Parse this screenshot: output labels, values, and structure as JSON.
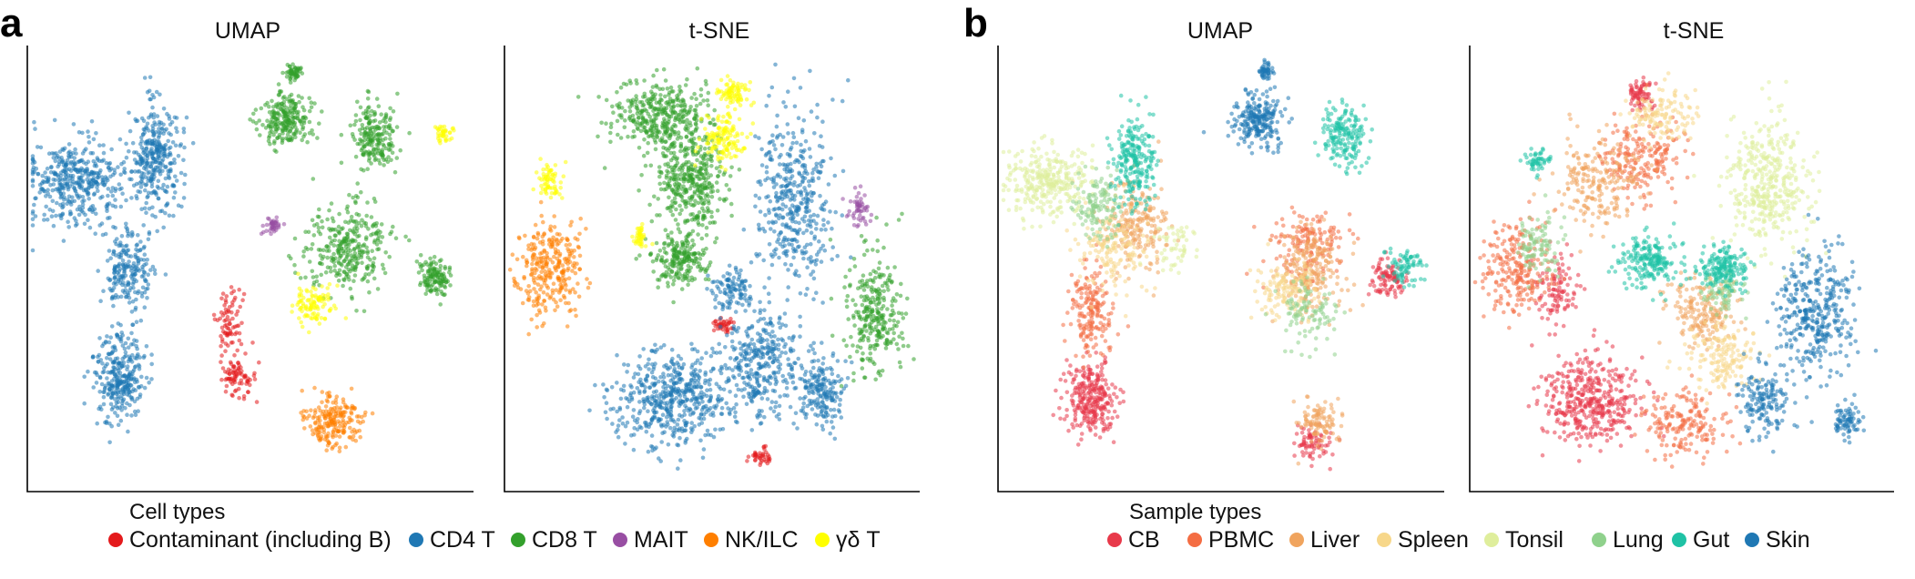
{
  "panels": [
    {
      "letter": "a"
    },
    {
      "letter": "b"
    }
  ],
  "chart_data": [
    {
      "type": "scatter",
      "panel": "a",
      "title": "UMAP",
      "xlabel": "",
      "ylabel": "",
      "grid": false,
      "legend_title": "Cell types",
      "legend_placement": "bottom",
      "series": [
        {
          "name": "Contaminant (including B)",
          "color": "#e41a1c",
          "clusters": [
            [
              0.45,
              0.62,
              0.03,
              0.08,
              0.3
            ],
            [
              0.47,
              0.75,
              0.04,
              0.05,
              0.3
            ]
          ]
        },
        {
          "name": "CD4 T",
          "color": "#1f78b4",
          "clusters": [
            [
              0.1,
              0.3,
              0.1,
              0.1,
              1.6
            ],
            [
              0.28,
              0.25,
              0.06,
              0.13,
              1.3
            ],
            [
              0.22,
              0.5,
              0.05,
              0.1,
              0.8
            ],
            [
              0.2,
              0.75,
              0.06,
              0.1,
              1.2
            ]
          ]
        },
        {
          "name": "CD8 T",
          "color": "#33a02c",
          "clusters": [
            [
              0.58,
              0.16,
              0.06,
              0.06,
              0.9
            ],
            [
              0.78,
              0.2,
              0.05,
              0.08,
              0.8
            ],
            [
              0.72,
              0.45,
              0.1,
              0.1,
              1.2
            ],
            [
              0.92,
              0.52,
              0.04,
              0.04,
              0.5
            ],
            [
              0.6,
              0.05,
              0.015,
              0.02,
              0.2
            ]
          ]
        },
        {
          "name": "MAIT",
          "color": "#984ea3",
          "clusters": [
            [
              0.55,
              0.4,
              0.02,
              0.02,
              0.15
            ]
          ]
        },
        {
          "name": "NK/ILC",
          "color": "#ff7f00",
          "clusters": [
            [
              0.69,
              0.85,
              0.06,
              0.06,
              0.8
            ]
          ]
        },
        {
          "name": "γδ T",
          "color": "#ffff00",
          "clusters": [
            [
              0.64,
              0.58,
              0.05,
              0.05,
              0.4
            ],
            [
              0.94,
              0.19,
              0.02,
              0.02,
              0.15
            ]
          ]
        }
      ]
    },
    {
      "type": "scatter",
      "panel": "a",
      "title": "t-SNE",
      "xlabel": "",
      "ylabel": "",
      "grid": false,
      "series": [
        {
          "name": "Contaminant (including B)",
          "color": "#e41a1c",
          "clusters": [
            [
              0.52,
              0.63,
              0.04,
              0.02,
              0.15
            ],
            [
              0.62,
              0.93,
              0.03,
              0.02,
              0.15
            ]
          ]
        },
        {
          "name": "CD4 T",
          "color": "#1f78b4",
          "clusters": [
            [
              0.7,
              0.35,
              0.1,
              0.2,
              1.6
            ],
            [
              0.4,
              0.8,
              0.15,
              0.11,
              2.0
            ],
            [
              0.62,
              0.72,
              0.1,
              0.12,
              1.3
            ],
            [
              0.77,
              0.78,
              0.06,
              0.08,
              0.7
            ],
            [
              0.55,
              0.55,
              0.05,
              0.05,
              0.4
            ]
          ]
        },
        {
          "name": "CD8 T",
          "color": "#33a02c",
          "clusters": [
            [
              0.37,
              0.15,
              0.12,
              0.08,
              1.4
            ],
            [
              0.45,
              0.3,
              0.08,
              0.12,
              1.5
            ],
            [
              0.42,
              0.48,
              0.07,
              0.06,
              0.8
            ],
            [
              0.9,
              0.6,
              0.07,
              0.15,
              1.1
            ]
          ]
        },
        {
          "name": "MAIT",
          "color": "#984ea3",
          "clusters": [
            [
              0.86,
              0.36,
              0.03,
              0.04,
              0.2
            ]
          ]
        },
        {
          "name": "NK/ILC",
          "color": "#ff7f00",
          "clusters": [
            [
              0.1,
              0.5,
              0.08,
              0.11,
              1.1
            ]
          ]
        },
        {
          "name": "γδ T",
          "color": "#ffff00",
          "clusters": [
            [
              0.1,
              0.3,
              0.03,
              0.04,
              0.25
            ],
            [
              0.53,
              0.2,
              0.06,
              0.06,
              0.5
            ],
            [
              0.55,
              0.1,
              0.04,
              0.03,
              0.3
            ],
            [
              0.32,
              0.43,
              0.02,
              0.03,
              0.15
            ]
          ]
        }
      ]
    },
    {
      "type": "scatter",
      "panel": "b",
      "title": "UMAP",
      "xlabel": "",
      "ylabel": "",
      "grid": false,
      "legend_title": "Sample types",
      "legend_placement": "bottom",
      "series": [
        {
          "name": "CB",
          "color": "#e8394a",
          "clusters": [
            [
              0.2,
              0.8,
              0.06,
              0.08,
              1.1
            ],
            [
              0.88,
              0.52,
              0.04,
              0.04,
              0.4
            ],
            [
              0.71,
              0.9,
              0.04,
              0.04,
              0.3
            ]
          ]
        },
        {
          "name": "PBMC",
          "color": "#f46d43",
          "clusters": [
            [
              0.2,
              0.6,
              0.05,
              0.1,
              0.7
            ],
            [
              0.7,
              0.45,
              0.08,
              0.08,
              0.6
            ]
          ]
        },
        {
          "name": "Liver",
          "color": "#f0a45e",
          "clusters": [
            [
              0.3,
              0.4,
              0.07,
              0.1,
              0.8
            ],
            [
              0.7,
              0.5,
              0.08,
              0.1,
              0.8
            ],
            [
              0.72,
              0.85,
              0.05,
              0.05,
              0.4
            ]
          ]
        },
        {
          "name": "Spleen",
          "color": "#f7d78a",
          "clusters": [
            [
              0.25,
              0.45,
              0.08,
              0.1,
              0.6
            ],
            [
              0.65,
              0.55,
              0.07,
              0.07,
              0.5
            ]
          ]
        },
        {
          "name": "Tonsil",
          "color": "#dfee9c",
          "clusters": [
            [
              0.1,
              0.3,
              0.09,
              0.08,
              1.2
            ],
            [
              0.4,
              0.45,
              0.05,
              0.05,
              0.2
            ]
          ]
        },
        {
          "name": "Lung",
          "color": "#8fd18c",
          "clusters": [
            [
              0.22,
              0.35,
              0.06,
              0.08,
              0.5
            ],
            [
              0.7,
              0.6,
              0.07,
              0.07,
              0.4
            ]
          ]
        },
        {
          "name": "Gut",
          "color": "#1fc2a5",
          "clusters": [
            [
              0.3,
              0.25,
              0.05,
              0.1,
              0.9
            ],
            [
              0.78,
              0.2,
              0.05,
              0.07,
              0.7
            ],
            [
              0.92,
              0.5,
              0.04,
              0.04,
              0.3
            ]
          ]
        },
        {
          "name": "Skin",
          "color": "#1f78b4",
          "clusters": [
            [
              0.58,
              0.16,
              0.06,
              0.06,
              0.9
            ],
            [
              0.6,
              0.05,
              0.015,
              0.02,
              0.2
            ]
          ]
        }
      ]
    },
    {
      "type": "scatter",
      "panel": "b",
      "title": "t-SNE",
      "xlabel": "",
      "ylabel": "",
      "grid": false,
      "series": [
        {
          "name": "CB",
          "color": "#e8394a",
          "clusters": [
            [
              0.28,
              0.8,
              0.12,
              0.1,
              1.6
            ],
            [
              0.4,
              0.1,
              0.03,
              0.04,
              0.3
            ],
            [
              0.2,
              0.55,
              0.05,
              0.08,
              0.4
            ]
          ]
        },
        {
          "name": "PBMC",
          "color": "#f46d43",
          "clusters": [
            [
              0.1,
              0.5,
              0.08,
              0.11,
              0.9
            ],
            [
              0.4,
              0.25,
              0.1,
              0.1,
              0.8
            ],
            [
              0.5,
              0.85,
              0.1,
              0.08,
              0.7
            ]
          ]
        },
        {
          "name": "Liver",
          "color": "#f0a45e",
          "clusters": [
            [
              0.3,
              0.3,
              0.1,
              0.1,
              0.8
            ],
            [
              0.55,
              0.6,
              0.08,
              0.08,
              0.7
            ]
          ]
        },
        {
          "name": "Spleen",
          "color": "#f7d78a",
          "clusters": [
            [
              0.45,
              0.15,
              0.08,
              0.06,
              0.5
            ],
            [
              0.6,
              0.7,
              0.08,
              0.08,
              0.6
            ]
          ]
        },
        {
          "name": "Tonsil",
          "color": "#dfee9c",
          "clusters": [
            [
              0.7,
              0.3,
              0.1,
              0.15,
              1.5
            ]
          ]
        },
        {
          "name": "Lung",
          "color": "#8fd18c",
          "clusters": [
            [
              0.15,
              0.45,
              0.05,
              0.07,
              0.4
            ],
            [
              0.6,
              0.55,
              0.05,
              0.05,
              0.3
            ]
          ]
        },
        {
          "name": "Gut",
          "color": "#1fc2a5",
          "clusters": [
            [
              0.42,
              0.48,
              0.07,
              0.06,
              0.8
            ],
            [
              0.6,
              0.5,
              0.06,
              0.05,
              0.7
            ],
            [
              0.15,
              0.25,
              0.03,
              0.03,
              0.2
            ]
          ]
        },
        {
          "name": "Skin",
          "color": "#1f78b4",
          "clusters": [
            [
              0.82,
              0.6,
              0.09,
              0.15,
              1.4
            ],
            [
              0.7,
              0.8,
              0.06,
              0.08,
              0.6
            ],
            [
              0.9,
              0.85,
              0.04,
              0.04,
              0.3
            ]
          ]
        }
      ]
    }
  ]
}
